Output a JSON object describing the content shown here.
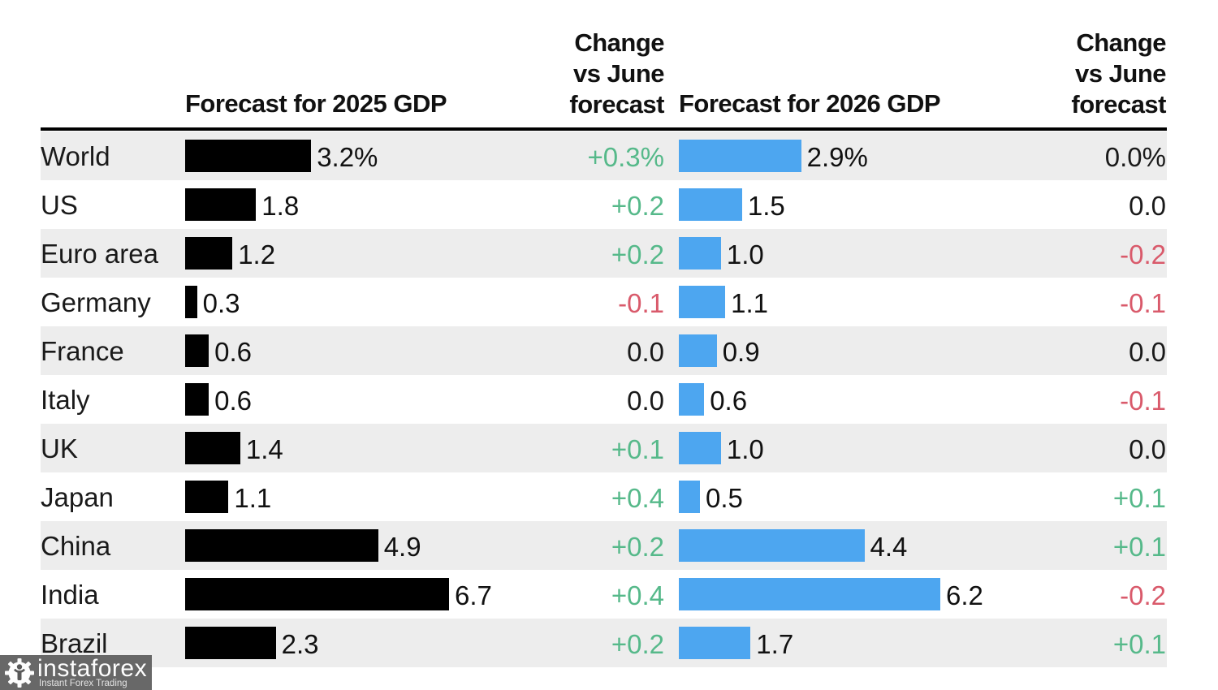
{
  "table": {
    "headers": {
      "col2025": "Forecast for 2025 GDP",
      "change1": "Change\nvs June\nforecast",
      "col2026": "Forecast for 2026 GDP",
      "change2": "Change\nvs June\nforecast"
    },
    "rows": [
      {
        "label": "World",
        "f2025": "3.2%",
        "c2025": "+0.3%",
        "f2026": "2.9%",
        "c2026": "0.0%"
      },
      {
        "label": "US",
        "f2025": "1.8",
        "c2025": "+0.2",
        "f2026": "1.5",
        "c2026": "0.0"
      },
      {
        "label": "Euro area",
        "f2025": "1.2",
        "c2025": "+0.2",
        "f2026": "1.0",
        "c2026": "-0.2"
      },
      {
        "label": "Germany",
        "f2025": "0.3",
        "c2025": "-0.1",
        "f2026": "1.1",
        "c2026": "-0.1"
      },
      {
        "label": "France",
        "f2025": "0.6",
        "c2025": "0.0",
        "f2026": "0.9",
        "c2026": "0.0"
      },
      {
        "label": "Italy",
        "f2025": "0.6",
        "c2025": "0.0",
        "f2026": "0.6",
        "c2026": "-0.1"
      },
      {
        "label": "UK",
        "f2025": "1.4",
        "c2025": "+0.1",
        "f2026": "1.0",
        "c2026": "0.0"
      },
      {
        "label": "Japan",
        "f2025": "1.1",
        "c2025": "+0.4",
        "f2026": "0.5",
        "c2026": "+0.1"
      },
      {
        "label": "China",
        "f2025": "4.9",
        "c2025": "+0.2",
        "f2026": "4.4",
        "c2026": "+0.1"
      },
      {
        "label": "India",
        "f2025": "6.7",
        "c2025": "+0.4",
        "f2026": "6.2",
        "c2026": "-0.2"
      },
      {
        "label": "Brazil",
        "f2025": "2.3",
        "c2025": "+0.2",
        "f2026": "1.7",
        "c2026": "+0.1"
      }
    ]
  },
  "chart_data": {
    "type": "bar",
    "orientation": "horizontal",
    "categories": [
      "World",
      "US",
      "Euro area",
      "Germany",
      "France",
      "Italy",
      "UK",
      "Japan",
      "China",
      "India",
      "Brazil"
    ],
    "series": [
      {
        "name": "Forecast for 2025 GDP",
        "unit": "%",
        "color": "#000000",
        "values": [
          3.2,
          1.8,
          1.2,
          0.3,
          0.6,
          0.6,
          1.4,
          1.1,
          4.9,
          6.7,
          2.3
        ]
      },
      {
        "name": "Change vs June forecast (2025)",
        "unit": "pp",
        "values": [
          0.3,
          0.2,
          0.2,
          -0.1,
          0.0,
          0.0,
          0.1,
          0.4,
          0.2,
          0.4,
          0.2
        ]
      },
      {
        "name": "Forecast for 2026 GDP",
        "unit": "%",
        "color": "#4da6f0",
        "values": [
          2.9,
          1.5,
          1.0,
          1.1,
          0.9,
          0.6,
          1.0,
          0.5,
          4.4,
          6.2,
          1.7
        ]
      },
      {
        "name": "Change vs June forecast (2026)",
        "unit": "pp",
        "values": [
          0.0,
          0.0,
          -0.2,
          -0.1,
          0.0,
          -0.1,
          0.0,
          0.1,
          0.1,
          -0.2,
          0.1
        ]
      }
    ],
    "legend_position": "none",
    "grid": false,
    "row_striping": true
  },
  "colors": {
    "bar_2025": "#000000",
    "bar_2026": "#4da6f0",
    "positive": "#56b98a",
    "negative": "#d95a6b",
    "neutral_text": "#1a1a1a",
    "stripe": "#ededed"
  },
  "watermark": {
    "brand": "instaforex",
    "tagline": "Instant Forex Trading"
  }
}
